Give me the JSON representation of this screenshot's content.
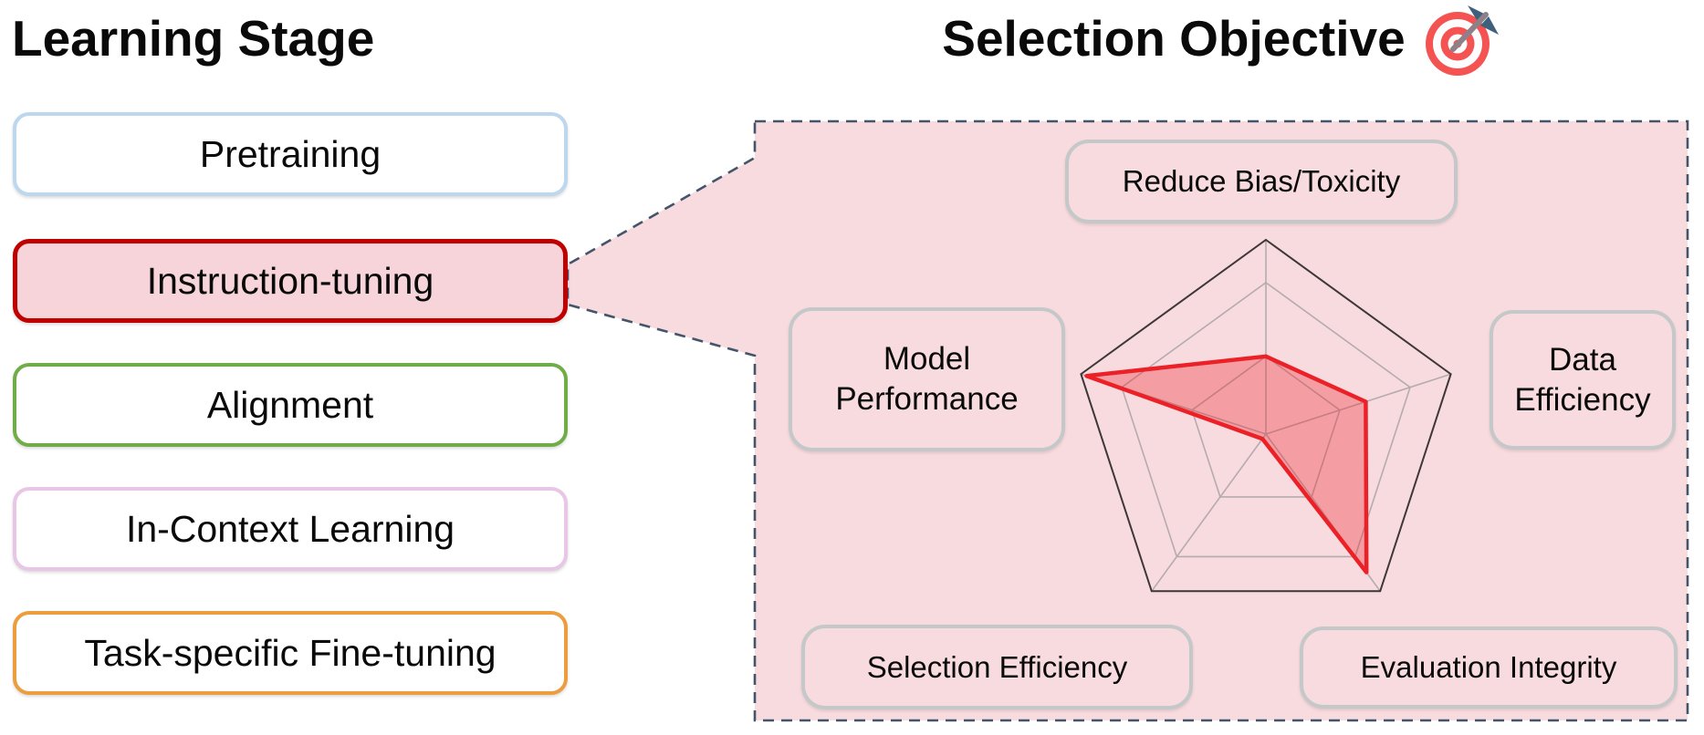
{
  "left_panel": {
    "title": "Learning Stage",
    "stages": [
      {
        "label": "Pretraining",
        "border_color": "#BDD7EE",
        "fill_color": "#FFFFFF",
        "selected": false
      },
      {
        "label": "Instruction-tuning",
        "border_color": "#C00000",
        "fill_color": "#F6D4D9",
        "selected": true
      },
      {
        "label": "Alignment",
        "border_color": "#70AD47",
        "fill_color": "#FFFFFF",
        "selected": false
      },
      {
        "label": "In-Context Learning",
        "border_color": "#E8C7E6",
        "fill_color": "#FFFFFF",
        "selected": false
      },
      {
        "label": "Task-specific Fine-tuning",
        "border_color": "#EC9D3D",
        "fill_color": "#FFFFFF",
        "selected": false
      }
    ]
  },
  "right_panel": {
    "title": "Selection Objective",
    "title_icon": "dartboard-emoji",
    "background": "#F8DBDE",
    "border_color": "#44546A",
    "label_border_color": "#C5C8C9",
    "labels": {
      "top": "Reduce Bias/Toxicity",
      "left_line1": "Model",
      "left_line2": "Performance",
      "right_line1": "Data",
      "right_line2": "Efficiency",
      "bottom_left": "Selection Efficiency",
      "bottom_right": "Evaluation Integrity"
    }
  },
  "chart_data": {
    "type": "radar",
    "title": "Selection Objective",
    "categories": [
      "Reduce Bias/Toxicity",
      "Data Efficiency",
      "Evaluation Integrity",
      "Selection Efficiency",
      "Model Performance"
    ],
    "series": [
      {
        "name": "Instruction-tuning",
        "values": [
          0.4,
          0.54,
          0.88,
          0.03,
          0.97
        ]
      }
    ],
    "rmax": 1.0,
    "grid_levels": [
      0.4,
      0.78
    ],
    "grid_on": true,
    "legend_position": "none",
    "stroke_color": "#EC2027",
    "fill_color": "rgba(236,32,39,0.32)",
    "grid_color": "#B5ABAE",
    "outline_color": "#3E3739"
  }
}
